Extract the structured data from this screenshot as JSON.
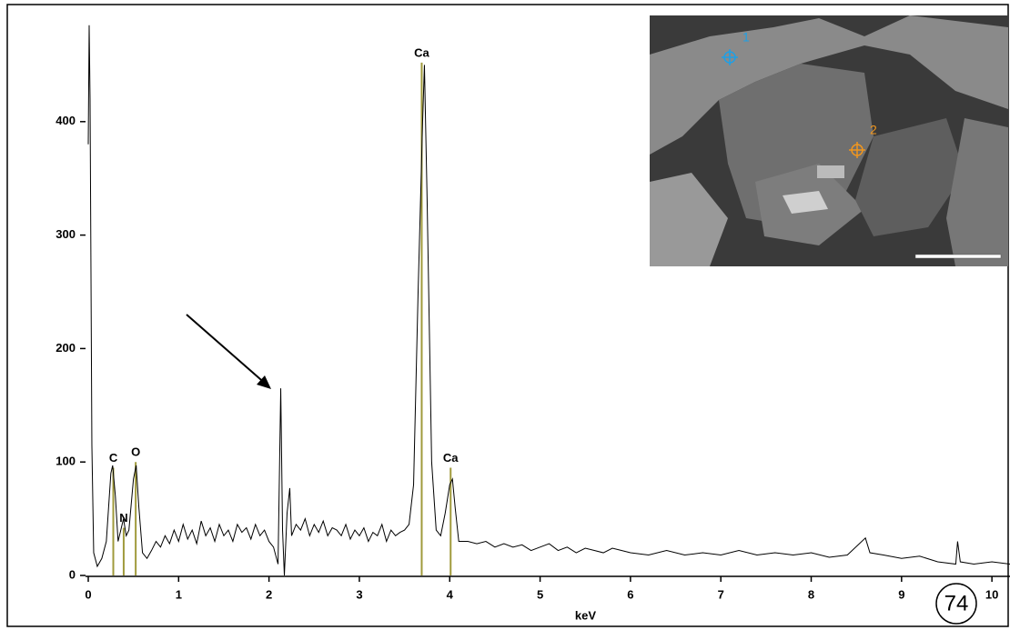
{
  "chart_data": {
    "type": "line",
    "x_label": "keV",
    "xlim": [
      0,
      10.2
    ],
    "ylim": [
      0,
      500
    ],
    "xticks": [
      0,
      1,
      2,
      3,
      4,
      5,
      6,
      7,
      8,
      9,
      10
    ],
    "yticks": [
      0,
      100,
      200,
      300,
      400
    ],
    "color": "#000000",
    "x": [
      0,
      0.01,
      0.02,
      0.04,
      0.06,
      0.1,
      0.15,
      0.2,
      0.25,
      0.27,
      0.3,
      0.33,
      0.36,
      0.39,
      0.42,
      0.45,
      0.5,
      0.53,
      0.56,
      0.6,
      0.65,
      0.7,
      0.75,
      0.8,
      0.85,
      0.9,
      0.95,
      1.0,
      1.05,
      1.1,
      1.15,
      1.2,
      1.25,
      1.3,
      1.35,
      1.4,
      1.45,
      1.5,
      1.55,
      1.6,
      1.65,
      1.7,
      1.75,
      1.8,
      1.85,
      1.9,
      1.95,
      2.0,
      2.05,
      2.1,
      2.13,
      2.15,
      2.17,
      2.2,
      2.23,
      2.25,
      2.3,
      2.35,
      2.4,
      2.45,
      2.5,
      2.55,
      2.6,
      2.65,
      2.7,
      2.75,
      2.8,
      2.85,
      2.9,
      2.95,
      3.0,
      3.05,
      3.1,
      3.15,
      3.2,
      3.25,
      3.3,
      3.35,
      3.4,
      3.45,
      3.5,
      3.55,
      3.6,
      3.65,
      3.7,
      3.72,
      3.75,
      3.8,
      3.85,
      3.9,
      3.95,
      4.0,
      4.03,
      4.06,
      4.1,
      4.2,
      4.3,
      4.4,
      4.5,
      4.6,
      4.7,
      4.8,
      4.9,
      5.0,
      5.1,
      5.2,
      5.3,
      5.4,
      5.5,
      5.6,
      5.7,
      5.8,
      5.9,
      6.0,
      6.2,
      6.4,
      6.6,
      6.8,
      7.0,
      7.2,
      7.4,
      7.6,
      7.8,
      8.0,
      8.2,
      8.4,
      8.6,
      8.65,
      8.8,
      9.0,
      9.2,
      9.4,
      9.6,
      9.62,
      9.65,
      9.8,
      10.0,
      10.2
    ],
    "values": [
      380,
      485,
      420,
      115,
      20,
      8,
      15,
      30,
      90,
      97,
      70,
      30,
      40,
      50,
      35,
      40,
      85,
      97,
      60,
      20,
      15,
      22,
      30,
      25,
      35,
      28,
      40,
      30,
      45,
      32,
      40,
      28,
      48,
      35,
      42,
      30,
      45,
      35,
      40,
      30,
      45,
      38,
      42,
      32,
      45,
      35,
      40,
      30,
      25,
      10,
      165,
      40,
      0,
      55,
      77,
      35,
      45,
      40,
      50,
      35,
      45,
      38,
      48,
      35,
      42,
      40,
      35,
      45,
      32,
      40,
      35,
      42,
      30,
      38,
      35,
      45,
      30,
      40,
      35,
      38,
      40,
      45,
      80,
      250,
      400,
      450,
      330,
      100,
      40,
      35,
      55,
      80,
      85,
      60,
      30,
      30,
      28,
      30,
      25,
      28,
      25,
      27,
      22,
      25,
      28,
      22,
      25,
      20,
      24,
      22,
      20,
      24,
      22,
      20,
      18,
      22,
      18,
      20,
      18,
      22,
      18,
      20,
      18,
      20,
      16,
      18,
      33,
      20,
      18,
      15,
      17,
      12,
      10,
      30,
      12,
      10,
      12,
      10
    ],
    "marker_color": "#a09a3c",
    "element_markers": [
      {
        "label": "C",
        "x": 0.277,
        "y": 95
      },
      {
        "label": "N",
        "x": 0.392,
        "y": 42
      },
      {
        "label": "O",
        "x": 0.525,
        "y": 100
      },
      {
        "label": "Ca",
        "x": 3.69,
        "y": 452
      },
      {
        "label": "Ca",
        "x": 4.01,
        "y": 95
      }
    ],
    "inset_labels": [
      {
        "label": "1",
        "color": "#1ea0e6"
      },
      {
        "label": "2",
        "color": "#f0961e"
      }
    ],
    "figure_number": "74"
  }
}
